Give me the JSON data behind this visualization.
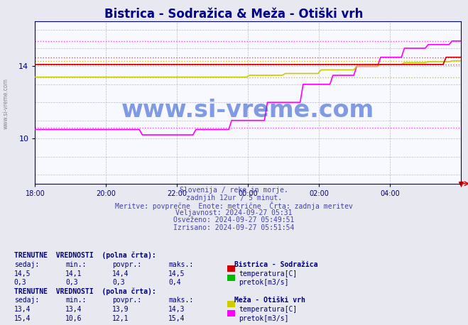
{
  "title": "Bistrica - Sodražica & Meža - Otiški vrh",
  "title_color": "#00008B",
  "bg_color": "#e8e8f0",
  "plot_bg_color": "#f8f8ff",
  "x_start": 18,
  "x_end": 30,
  "y_min": 7.5,
  "y_max": 16.5,
  "yticks": [
    10,
    14
  ],
  "grid_major_color": "#ccccdd",
  "grid_minor_color": "#ddddee",
  "bistrica_temp_color": "#cc0000",
  "bistrica_pretok_color": "#00bb00",
  "meza_temp_color": "#cccc00",
  "meza_pretok_color": "#ff00ff",
  "dotted_red": "#ff4444",
  "dotted_magenta": "#ff44ff",
  "dotted_yellow": "#cccc00",
  "axis_color": "#000080",
  "tick_color": "#000080",
  "watermark": "www.si-vreme.com",
  "watermark_color": "#1E4FCC",
  "watermark_alpha": 0.55,
  "sidebar_text": "www.si-vreme.com",
  "info_line1": "Slovenija / reke in morje.",
  "info_line2": "zadnjih 12ur / 5 minut.",
  "info_line3": "Meritve: povprečne  Enote: metrične  Črta: zadnja meritev",
  "info_line4": "Veljavnost: 2024-09-27 05:31",
  "info_line5": "Osveženo: 2024-09-27 05:49:51",
  "info_line6": "Izrisano: 2024-09-27 05:51:54",
  "table1_header": "TRENUTNE  VREDNOSTI  (polna črta):",
  "table1_station": "Bistrica - Sodražica",
  "table1_r1": [
    "14,5",
    "14,1",
    "14,4",
    "14,5"
  ],
  "table1_r1_color": "#cc0000",
  "table1_r1_label": "temperatura[C]",
  "table1_r2": [
    "0,3",
    "0,3",
    "0,3",
    "0,4"
  ],
  "table1_r2_color": "#00bb00",
  "table1_r2_label": "pretok[m3/s]",
  "table2_header": "TRENUTNE  VREDNOSTI  (polna črta):",
  "table2_station": "Meža - Otiški vrh",
  "table2_r1": [
    "13,4",
    "13,4",
    "13,9",
    "14,3"
  ],
  "table2_r1_color": "#cccc00",
  "table2_r1_label": "temperatura[C]",
  "table2_r2": [
    "15,4",
    "10,6",
    "12,1",
    "15,4"
  ],
  "table2_r2_color": "#ff00ff",
  "table2_r2_label": "pretok[m3/s]",
  "col_headers": [
    "sedaj:",
    "min.:",
    "povpr.:",
    "maks.:"
  ],
  "xtick_pos": [
    18,
    20,
    22,
    24,
    26,
    28,
    30
  ],
  "xtick_labels": [
    "18:00",
    "20:00",
    "22:00",
    "00:00",
    "02:00",
    "04:00",
    ""
  ]
}
